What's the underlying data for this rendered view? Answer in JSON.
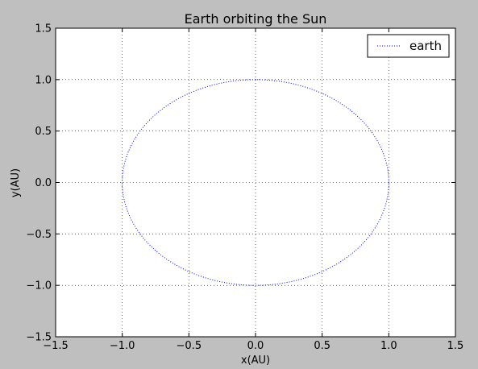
{
  "chart_data": {
    "type": "line",
    "title": "Earth orbiting the Sun",
    "xlabel": "x(AU)",
    "ylabel": "y(AU)",
    "xlim": [
      -1.5,
      1.5
    ],
    "ylim": [
      -1.5,
      1.5
    ],
    "xticks": [
      -1.5,
      -1.0,
      -0.5,
      0.0,
      0.5,
      1.0,
      1.5
    ],
    "yticks": [
      -1.5,
      -1.0,
      -0.5,
      0.0,
      0.5,
      1.0,
      1.5
    ],
    "xtick_labels": [
      "−1.5",
      "−1.0",
      "−0.5",
      "0.0",
      "0.5",
      "1.0",
      "1.5"
    ],
    "ytick_labels": [
      "−1.5",
      "−1.0",
      "−0.5",
      "0.0",
      "0.5",
      "1.0",
      "1.5"
    ],
    "grid": true,
    "legend_position": "top-right",
    "series": [
      {
        "name": "earth",
        "color": "#0000ff",
        "linestyle": "dotted",
        "shape": "circle",
        "center": [
          0,
          0
        ],
        "radius": 1.0
      }
    ]
  }
}
